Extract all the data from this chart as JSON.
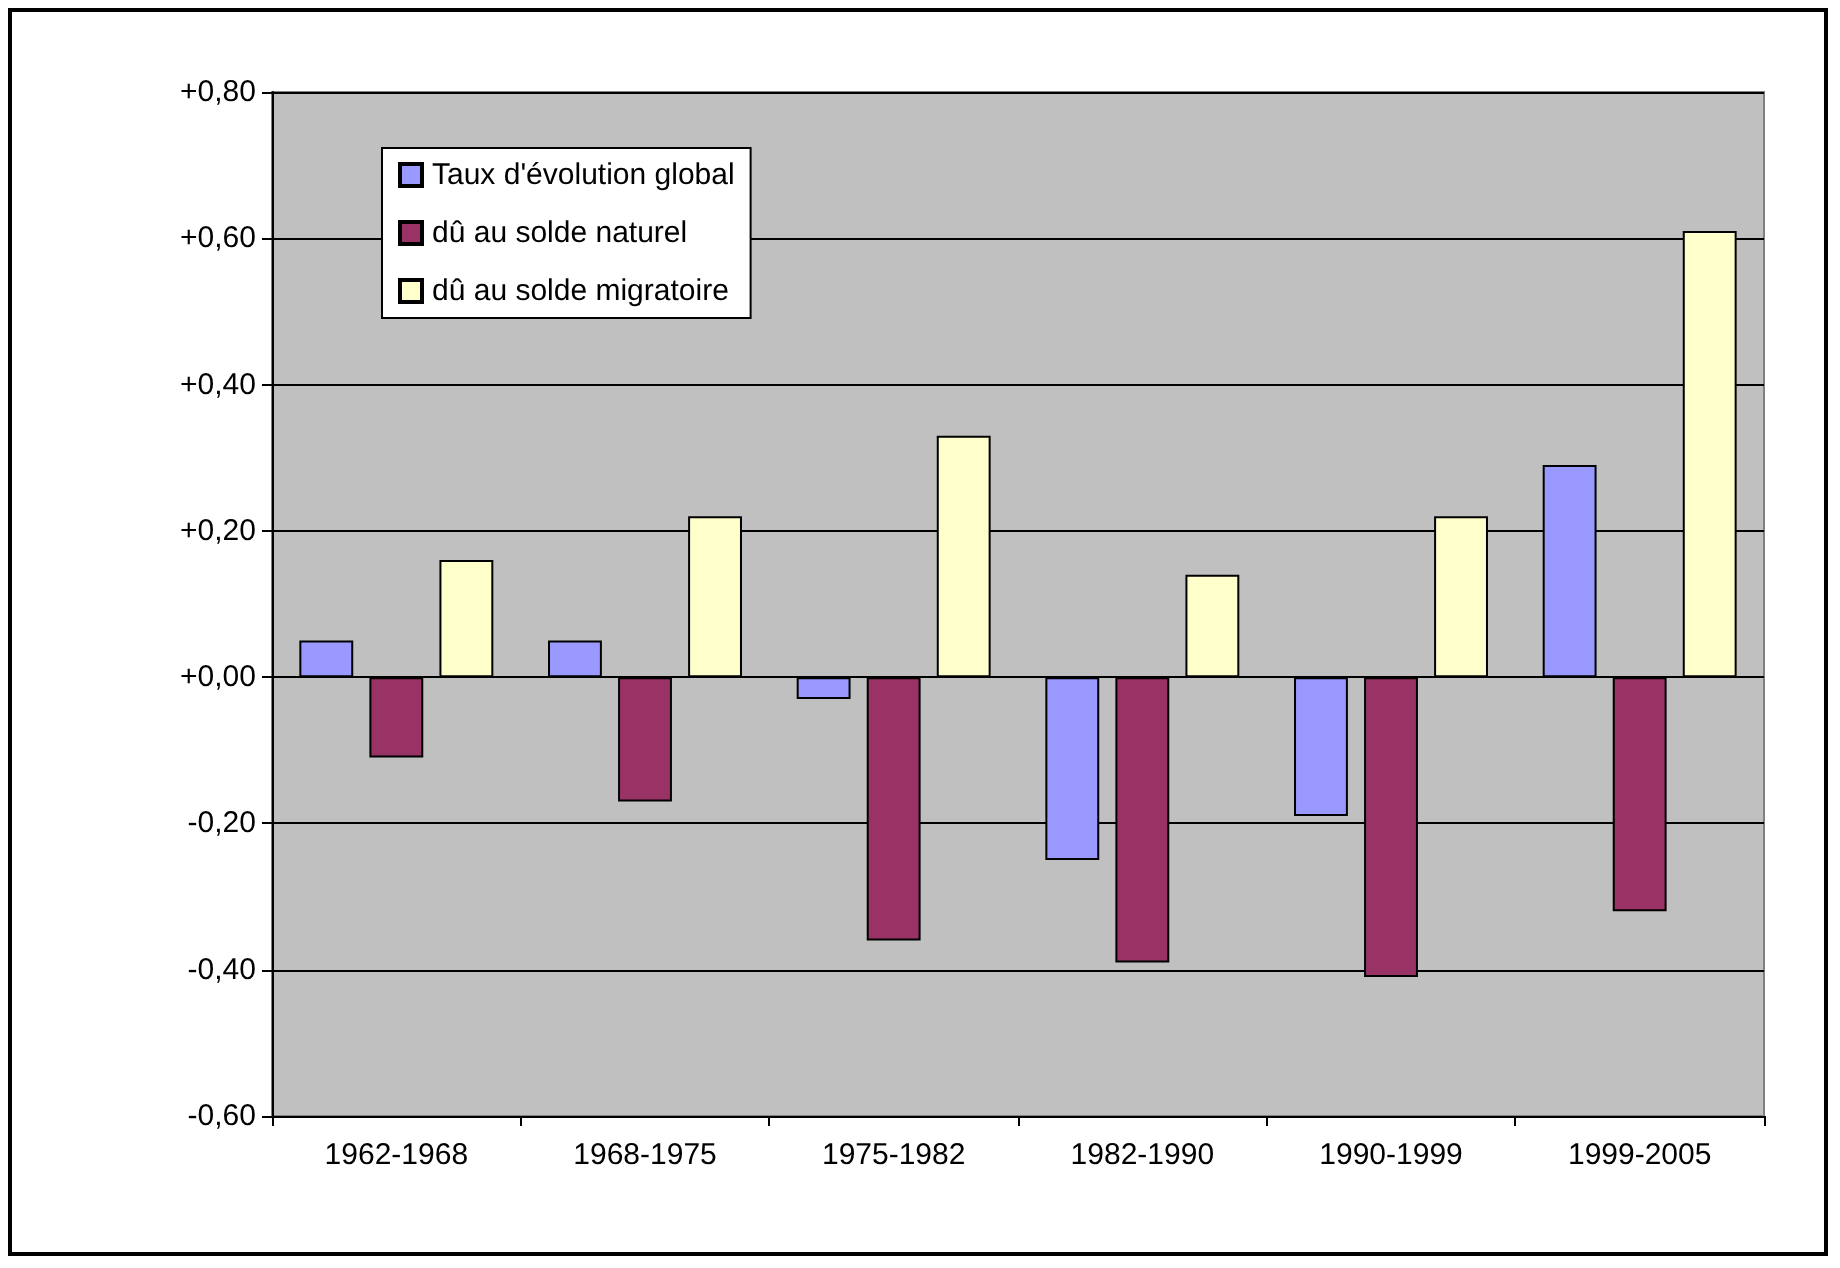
{
  "chart_data": {
    "type": "bar",
    "categories": [
      "1962-1968",
      "1968-1975",
      "1975-1982",
      "1982-1990",
      "1990-1999",
      "1999-2005"
    ],
    "series": [
      {
        "name": "Taux d'évolution global",
        "color": "#9999ff",
        "values": [
          0.05,
          0.05,
          -0.03,
          -0.25,
          -0.19,
          0.29
        ]
      },
      {
        "name": "dû au solde naturel",
        "color": "#993366",
        "values": [
          -0.11,
          -0.17,
          -0.36,
          -0.39,
          -0.41,
          -0.32
        ]
      },
      {
        "name": "dû au solde migratoire",
        "color": "#ffffcc",
        "values": [
          0.16,
          0.22,
          0.33,
          0.14,
          0.22,
          0.61
        ]
      }
    ],
    "ylim": [
      -0.6,
      0.8
    ],
    "yticks": [
      {
        "value": -0.6,
        "label": "-0,60"
      },
      {
        "value": -0.4,
        "label": "-0,40"
      },
      {
        "value": -0.2,
        "label": "-0,20"
      },
      {
        "value": 0,
        "label": "+0,00"
      },
      {
        "value": 0.2,
        "label": "+0,20"
      },
      {
        "value": 0.4,
        "label": "+0,40"
      },
      {
        "value": 0.6,
        "label": "+0,60"
      },
      {
        "value": 0.8,
        "label": "+0,80"
      }
    ],
    "grid": "y",
    "legend": "top left"
  }
}
